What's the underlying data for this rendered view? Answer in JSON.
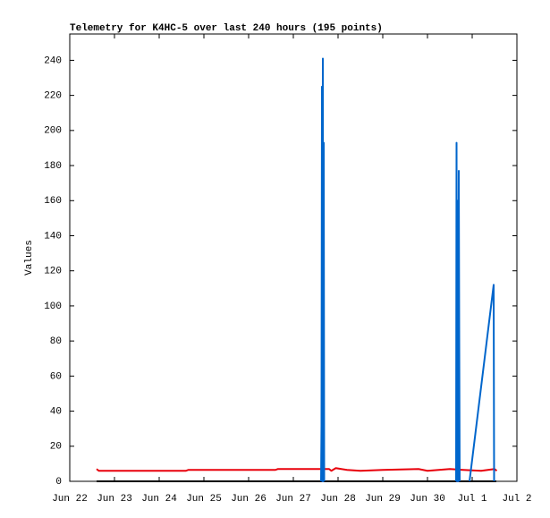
{
  "chart_data": {
    "type": "line",
    "title": "Telemetry for K4HC-5 over last 240 hours (195 points)",
    "y_label": "Values",
    "xlim": [
      0,
      10
    ],
    "xticks": [
      {
        "value": 0,
        "label": "Jun 22"
      },
      {
        "value": 1,
        "label": "Jun 23"
      },
      {
        "value": 2,
        "label": "Jun 24"
      },
      {
        "value": 3,
        "label": "Jun 25"
      },
      {
        "value": 4,
        "label": "Jun 26"
      },
      {
        "value": 5,
        "label": "Jun 27"
      },
      {
        "value": 6,
        "label": "Jun 28"
      },
      {
        "value": 7,
        "label": "Jun 29"
      },
      {
        "value": 8,
        "label": "Jun 30"
      },
      {
        "value": 9,
        "label": "Jul 1"
      },
      {
        "value": 10,
        "label": "Jul 2"
      }
    ],
    "ylim": [
      0,
      255
    ],
    "yticks": [
      0,
      20,
      40,
      60,
      80,
      100,
      120,
      140,
      160,
      180,
      200,
      220,
      240
    ],
    "series": [
      {
        "color": "#000000",
        "x": [
          0.6,
          9.54
        ],
        "values": [
          0,
          0
        ]
      },
      {
        "color": "#e8000b",
        "x": [
          0.6,
          0.65,
          2.6,
          2.65,
          4.6,
          4.65,
          5.8,
          5.85,
          5.95,
          6.2,
          6.5,
          7.0,
          7.8,
          8.0,
          8.5,
          8.8,
          9.2,
          9.5,
          9.55
        ],
        "values": [
          7,
          6,
          6,
          6.5,
          6.5,
          7,
          7,
          6,
          7.5,
          6.5,
          6,
          6.5,
          7,
          6,
          7,
          6.5,
          6,
          7,
          6
        ]
      },
      {
        "color": "#0066cc",
        "x": [
          5.62,
          5.63,
          5.64,
          5.65,
          5.66,
          5.67,
          5.68,
          5.69,
          null,
          8.64,
          8.65,
          8.66,
          8.67,
          8.68,
          8.69,
          8.7,
          8.71,
          8.72,
          null,
          8.94,
          9.48,
          9.49
        ],
        "values": [
          0,
          32,
          225,
          0,
          241,
          0,
          193,
          0,
          null,
          0,
          193,
          0,
          97,
          160,
          0,
          177,
          80,
          0,
          null,
          0,
          112,
          0
        ]
      }
    ]
  }
}
